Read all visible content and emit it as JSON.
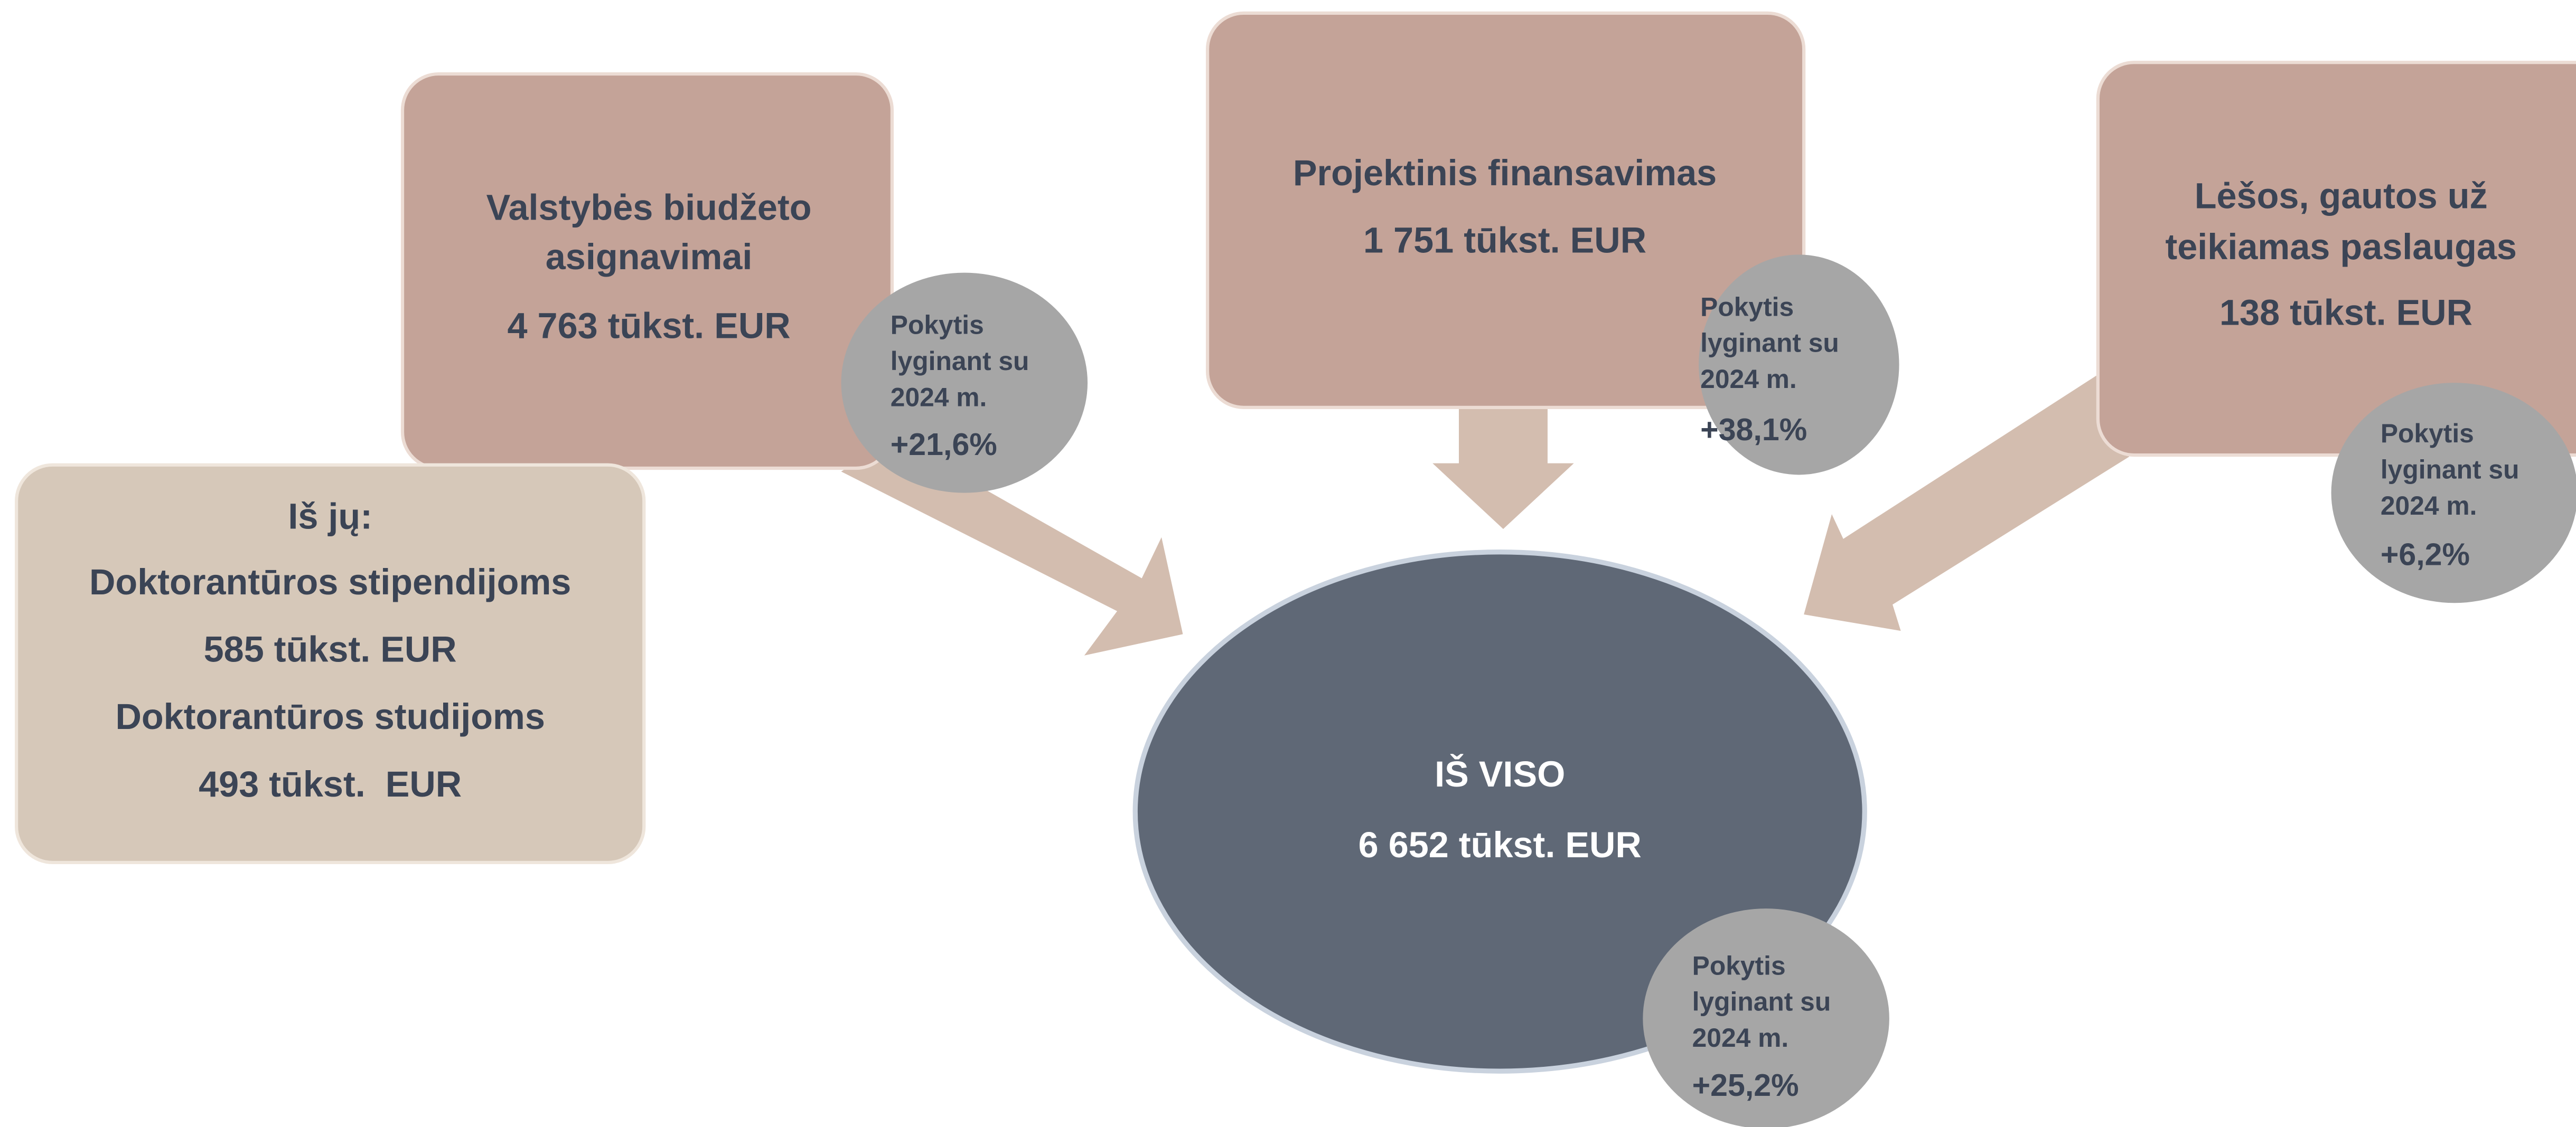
{
  "sources": [
    {
      "title": [
        "Valstybės biudžeto",
        "asignavimai"
      ],
      "amount": "4 763 tūkst. EUR",
      "change_label": [
        "Pokytis",
        "lyginant su",
        "2024 m."
      ],
      "change": "+21,6%"
    },
    {
      "title": [
        "Projektinis finansavimas"
      ],
      "amount": "1 751 tūkst. EUR",
      "change_label": [
        "Pokytis",
        "lyginant su",
        "2024 m."
      ],
      "change": "+38,1%"
    },
    {
      "title": [
        "Lėšos, gautos už",
        "teikiamas paslaugas"
      ],
      "amount": "138 tūkst. EUR",
      "change_label": [
        "Pokytis",
        "lyginant su",
        "2024 m."
      ],
      "change": "+6,2%"
    }
  ],
  "breakdown": {
    "lines": [
      "Iš jų:",
      "Doktorantūros stipendijoms",
      "585 tūkst. EUR",
      "Doktorantūros studijoms",
      "493 tūkst.  EUR"
    ]
  },
  "total": {
    "title": "IŠ VISO",
    "amount": "6 652 tūkst. EUR",
    "change_label": [
      "Pokytis",
      "lyginant su",
      "2024 m."
    ],
    "change": "+25,2%"
  }
}
